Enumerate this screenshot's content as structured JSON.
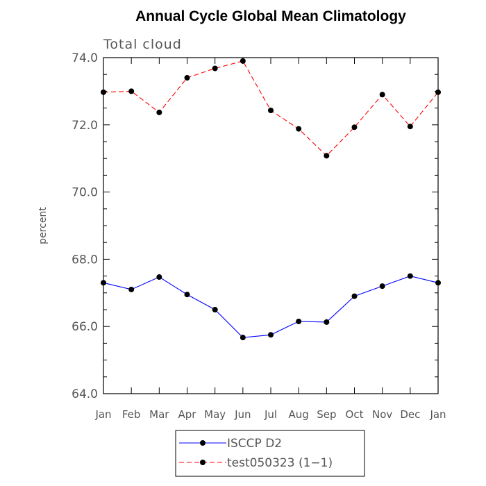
{
  "chart_data": {
    "type": "line",
    "title": "Annual Cycle Global Mean Climatology",
    "subtitle": "Total cloud",
    "ylabel": "percent",
    "xlabel": "",
    "categories": [
      "Jan",
      "Feb",
      "Mar",
      "Apr",
      "May",
      "Jun",
      "Jul",
      "Aug",
      "Sep",
      "Oct",
      "Nov",
      "Dec",
      "Jan"
    ],
    "ylim": [
      64.0,
      74.0
    ],
    "yticks": [
      64.0,
      66.0,
      68.0,
      70.0,
      72.0,
      74.0
    ],
    "ytick_labels": [
      "64.0",
      "66.0",
      "68.0",
      "70.0",
      "72.0",
      "74.0"
    ],
    "grid": false,
    "legend_placement": "bottom-center",
    "series": [
      {
        "name": "ISCCP D2",
        "color": "#0000ff",
        "line_style": "solid",
        "marker": "filled-circle",
        "values": [
          67.3,
          67.1,
          67.47,
          66.95,
          66.5,
          65.67,
          65.75,
          66.15,
          66.13,
          66.9,
          67.2,
          67.5,
          67.3
        ]
      },
      {
        "name": "test050323 (1−1)",
        "color": "#ff0000",
        "line_style": "dashed",
        "marker": "filled-circle",
        "values": [
          72.97,
          73.0,
          72.37,
          73.4,
          73.68,
          73.9,
          72.43,
          71.88,
          71.08,
          71.93,
          72.9,
          71.95,
          72.97
        ]
      }
    ]
  }
}
